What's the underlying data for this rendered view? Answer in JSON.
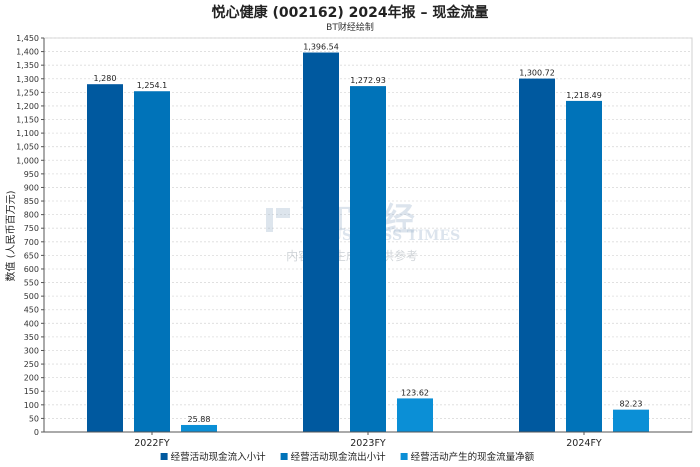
{
  "chart_data": {
    "type": "bar",
    "title": "悦心健康 (002162) 2024年报 – 现金流量",
    "subtitle": "BT财经绘制",
    "ylabel": "数值 (人民币百万元)",
    "xlabel": "",
    "categories": [
      "2022FY",
      "2023FY",
      "2024FY"
    ],
    "ylim": [
      0,
      1450
    ],
    "ytick_step": 50,
    "grid": true,
    "legend_position": "bottom",
    "series": [
      {
        "name": "经营活动现金流入小计",
        "color": "#00599f",
        "values": [
          1280,
          1396.54,
          1300.72
        ],
        "labels": [
          "1,280",
          "1,396.54",
          "1,300.72"
        ]
      },
      {
        "name": "经营活动现金流出小计",
        "color": "#0073b9",
        "values": [
          1254.1,
          1272.93,
          1218.49
        ],
        "labels": [
          "1,254.1",
          "1,272.93",
          "1,218.49"
        ]
      },
      {
        "name": "经营活动产生的现金流量净额",
        "color": "#0b8fd6",
        "values": [
          25.88,
          123.62,
          82.23
        ],
        "labels": [
          "25.88",
          "123.62",
          "82.23"
        ]
      }
    ]
  },
  "watermark": {
    "logo_text": "BT财经",
    "brand_text": "BUSINESS TIMES",
    "note_text": "内容由AI生成，仅供参考"
  }
}
